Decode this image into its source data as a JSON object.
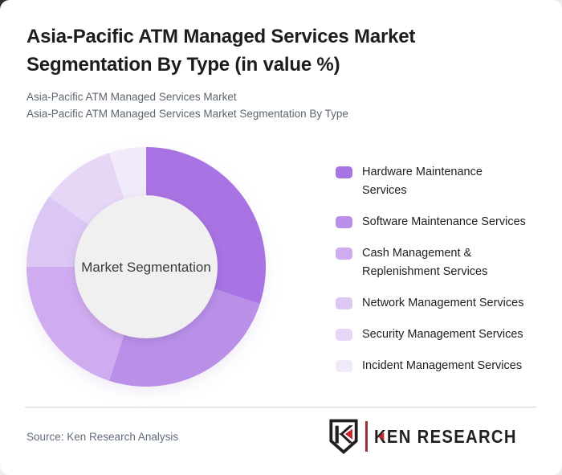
{
  "header": {
    "title": "Asia-Pacific ATM Managed Services Market Segmentation By Type (in value %)",
    "subtitle_line1": "Asia-Pacific ATM Managed Services Market",
    "subtitle_line2": "Asia-Pacific ATM Managed Services Market Segmentation By Type"
  },
  "chart_data": {
    "type": "pie",
    "subtype": "donut",
    "title": "Asia-Pacific ATM Managed Services Market Segmentation By Type (in value %)",
    "center_label": "Market Segmentation",
    "categories": [
      "Hardware Maintenance Services",
      "Software Maintenance Services",
      "Cash Management & Replenishment Services",
      "Network Management Services",
      "Security Management Services",
      "Incident Management Services"
    ],
    "values": [
      30,
      25,
      20,
      10,
      10,
      5
    ],
    "values_are_estimates_from_arc_angles": true,
    "unit": "value %",
    "colors": [
      "#a873e2",
      "#b98fe8",
      "#cfabef",
      "#dcc6f4",
      "#e6d7f7",
      "#f1eafa"
    ],
    "inner_circle_color": "#f0f0f0",
    "center_text_color": "#3b3b3b",
    "start_angle_deg": 0,
    "direction": "clockwise",
    "donut_hole_ratio": 0.6,
    "legend_position": "right",
    "data_labels_shown": false
  },
  "legend": {
    "items": [
      {
        "color": "#a873e2",
        "lines": [
          "Hardware Maintenance",
          "Services"
        ]
      },
      {
        "color": "#b98fe8",
        "lines": [
          "Software Maintenance Services"
        ]
      },
      {
        "color": "#cfabef",
        "lines": [
          "Cash Management &",
          "Replenishment Services"
        ]
      },
      {
        "color": "#dcc6f4",
        "lines": [
          "Network Management Services"
        ]
      },
      {
        "color": "#e6d7f7",
        "lines": [
          "Security Management Services"
        ]
      },
      {
        "color": "#f1eafa",
        "lines": [
          "Incident Management Services"
        ]
      }
    ]
  },
  "footer": {
    "source_label": "Source: Ken Research Analysis",
    "logo_text": "KEN RESEARCH"
  },
  "colors": {
    "accent_purple": "#a873e2",
    "logo_red": "#c1272d",
    "logo_dark": "#231f20",
    "logo_separator": "#9e3038",
    "title_text": "#1d1d1d",
    "subtitle_text": "#5c6670",
    "source_text": "#616d7a",
    "divider": "#d6d6d6",
    "card_bg": "#ffffff",
    "page_bg": "#ededed"
  }
}
